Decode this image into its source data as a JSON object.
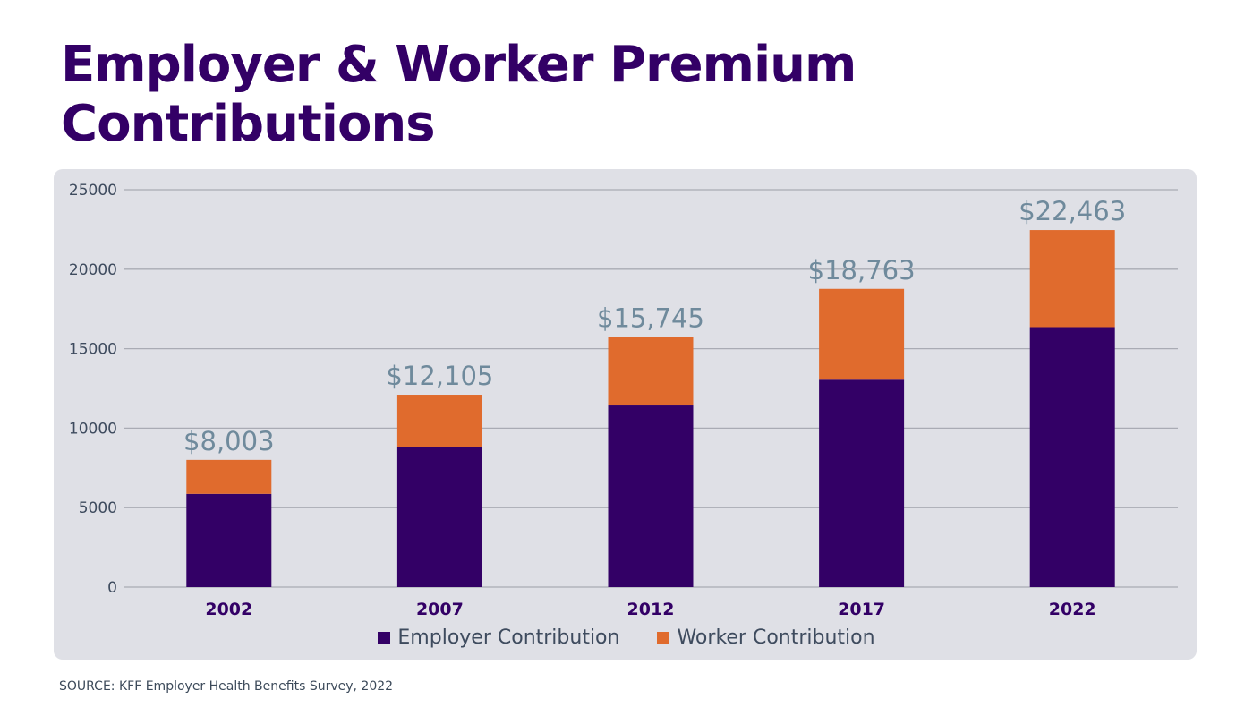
{
  "title": "Employer & Worker Premium Contributions",
  "source": "SOURCE: KFF Employer Health Benefits Survey, 2022",
  "chart_data": {
    "type": "bar",
    "stacked": true,
    "categories": [
      "2002",
      "2007",
      "2012",
      "2017",
      "2022"
    ],
    "series": [
      {
        "name": "Employer Contribution",
        "color": "#330066",
        "values": [
          5866,
          8824,
          11429,
          13049,
          16357
        ]
      },
      {
        "name": "Worker Contribution",
        "color": "#e06b2d",
        "values": [
          2137,
          3281,
          4316,
          5714,
          6106
        ]
      }
    ],
    "totals": [
      "$8,003",
      "$12,105",
      "$15,745",
      "$18,763",
      "$22,463"
    ],
    "yticks": [
      0,
      5000,
      10000,
      15000,
      20000,
      25000
    ],
    "ylim": [
      0,
      25000
    ],
    "grid": true,
    "legend": "bottom"
  }
}
